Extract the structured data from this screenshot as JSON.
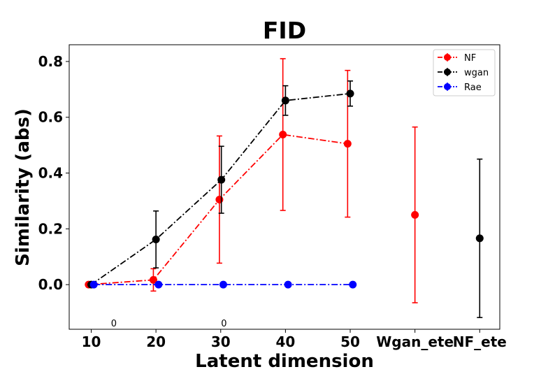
{
  "chart_data": {
    "type": "line",
    "title": "FID",
    "xlabel": "Latent dimension",
    "ylabel": "Similarity (abs)",
    "x_ticks": [
      {
        "pos": 10,
        "label": "10"
      },
      {
        "pos": 20,
        "label": "20"
      },
      {
        "pos": 30,
        "label": "30"
      },
      {
        "pos": 40,
        "label": "40"
      },
      {
        "pos": 50,
        "label": "50"
      },
      {
        "pos": 60,
        "label": "Wgan_ete"
      },
      {
        "pos": 70,
        "label": "NF_ete"
      }
    ],
    "y_ticks": [
      {
        "value": 0.0,
        "label": "0.0"
      },
      {
        "value": 0.2,
        "label": "0.2"
      },
      {
        "value": 0.4,
        "label": "0.4"
      },
      {
        "value": 0.6,
        "label": "0.6"
      },
      {
        "value": 0.8,
        "label": "0.8"
      }
    ],
    "xlim": [
      6.6,
      73.1
    ],
    "ylim": [
      -0.16,
      0.86
    ],
    "legend_position": "top-right",
    "grid": false,
    "series": [
      {
        "name": "NF",
        "color": "#ff0000",
        "linestyle": "dashdot",
        "points": [
          {
            "x": 9.6,
            "y": 0.0,
            "err": 0.0
          },
          {
            "x": 19.6,
            "y": 0.017,
            "err": 0.04
          },
          {
            "x": 29.8,
            "y": 0.305,
            "err": 0.228
          },
          {
            "x": 39.6,
            "y": 0.538,
            "err": 0.272
          },
          {
            "x": 49.6,
            "y": 0.505,
            "err": 0.263
          }
        ],
        "extra_points": [
          {
            "x": 60.0,
            "y": 0.25,
            "err": 0.315
          }
        ]
      },
      {
        "name": "wgan",
        "color": "#000000",
        "linestyle": "dashdot",
        "points": [
          {
            "x": 10.0,
            "y": 0.0,
            "err": 0.0
          },
          {
            "x": 20.0,
            "y": 0.162,
            "err": 0.102
          },
          {
            "x": 30.1,
            "y": 0.376,
            "err": 0.12
          },
          {
            "x": 40.0,
            "y": 0.66,
            "err": 0.053
          },
          {
            "x": 50.0,
            "y": 0.685,
            "err": 0.045
          }
        ],
        "extra_points": [
          {
            "x": 70.0,
            "y": 0.166,
            "err": 0.284
          }
        ]
      },
      {
        "name": "Rae",
        "color": "#0000ff",
        "linestyle": "dashdot",
        "points": [
          {
            "x": 10.4,
            "y": 0.0,
            "err": 0.0
          },
          {
            "x": 20.4,
            "y": 0.0,
            "err": 0.0
          },
          {
            "x": 30.4,
            "y": 0.0,
            "err": 0.0
          },
          {
            "x": 40.4,
            "y": 0.0,
            "err": 0.0
          },
          {
            "x": 50.4,
            "y": 0.0,
            "err": 0.0
          }
        ],
        "extra_points": []
      }
    ],
    "annotations": [
      {
        "x": 13.5,
        "y": -0.15,
        "text": "0"
      },
      {
        "x": 30.5,
        "y": -0.15,
        "text": "0"
      }
    ]
  }
}
